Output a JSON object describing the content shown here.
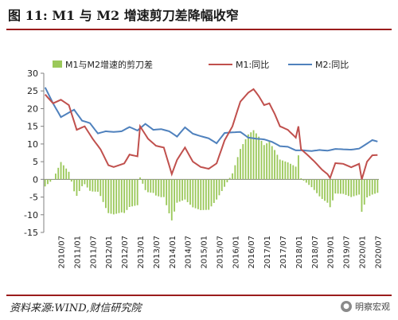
{
  "figure": {
    "title": "图 11:  M1 与 M2 增速剪刀差降幅收窄",
    "source": "资料来源:WIND,财信研究院",
    "watermark": "明察宏观"
  },
  "chart_data": {
    "type": "bar+line",
    "ylim": [
      -15,
      30
    ],
    "yticks": [
      -15,
      -10,
      -5,
      0,
      5,
      10,
      15,
      20,
      25,
      30
    ],
    "xtick_labels": [
      "2010/07",
      "2011/01",
      "2011/07",
      "2012/01",
      "2012/07",
      "2013/01",
      "2013/07",
      "2014/01",
      "2014/07",
      "2015/01",
      "2015/07",
      "2016/01",
      "2016/07",
      "2017/01",
      "2017/07",
      "2018/01",
      "2018/07",
      "2019/01",
      "2019/07",
      "2020/01",
      "2020/07"
    ],
    "x_start": "2010/01",
    "legend": {
      "position": "top",
      "entries": [
        "M1与M2增速的剪刀差",
        "M1:同比",
        "M2:同比"
      ]
    },
    "colors": {
      "bars": "#9bc85a",
      "m1": "#c0504d",
      "m2": "#4f81bd",
      "axis": "#808080"
    },
    "m1_anchors": [
      [
        "2010/01",
        24.0
      ],
      [
        "2010/04",
        21.5
      ],
      [
        "2010/07",
        22.5
      ],
      [
        "2010/10",
        21.0
      ],
      [
        "2011/01",
        14.0
      ],
      [
        "2011/04",
        15.0
      ],
      [
        "2011/07",
        11.5
      ],
      [
        "2011/10",
        8.5
      ],
      [
        "2012/01",
        4.0
      ],
      [
        "2012/03",
        3.5
      ],
      [
        "2012/05",
        4.0
      ],
      [
        "2012/07",
        4.5
      ],
      [
        "2012/09",
        7.0
      ],
      [
        "2012/12",
        6.5
      ],
      [
        "2013/01",
        15.0
      ],
      [
        "2013/04",
        11.5
      ],
      [
        "2013/07",
        9.5
      ],
      [
        "2013/10",
        9.0
      ],
      [
        "2014/01",
        1.5
      ],
      [
        "2014/03",
        5.5
      ],
      [
        "2014/06",
        9.0
      ],
      [
        "2014/09",
        5.0
      ],
      [
        "2014/12",
        3.5
      ],
      [
        "2015/03",
        3.0
      ],
      [
        "2015/06",
        4.5
      ],
      [
        "2015/09",
        11.0
      ],
      [
        "2015/12",
        15.0
      ],
      [
        "2016/03",
        22.0
      ],
      [
        "2016/06",
        24.5
      ],
      [
        "2016/08",
        25.5
      ],
      [
        "2016/10",
        23.5
      ],
      [
        "2016/12",
        21.0
      ],
      [
        "2017/02",
        21.5
      ],
      [
        "2017/04",
        18.5
      ],
      [
        "2017/06",
        15.0
      ],
      [
        "2017/09",
        14.0
      ],
      [
        "2017/12",
        11.8
      ],
      [
        "2018/01",
        15.0
      ],
      [
        "2018/02",
        8.5
      ],
      [
        "2018/04",
        7.2
      ],
      [
        "2018/07",
        5.1
      ],
      [
        "2018/10",
        2.7
      ],
      [
        "2018/12",
        1.5
      ],
      [
        "2019/01",
        0.4
      ],
      [
        "2019/03",
        4.6
      ],
      [
        "2019/06",
        4.4
      ],
      [
        "2019/09",
        3.4
      ],
      [
        "2019/12",
        4.4
      ],
      [
        "2020/01",
        0.0
      ],
      [
        "2020/03",
        5.0
      ],
      [
        "2020/05",
        6.8
      ],
      [
        "2020/07",
        6.9
      ]
    ],
    "m2_anchors": [
      [
        "2010/01",
        26.0
      ],
      [
        "2010/04",
        21.5
      ],
      [
        "2010/07",
        17.6
      ],
      [
        "2010/12",
        19.7
      ],
      [
        "2011/03",
        16.6
      ],
      [
        "2011/06",
        15.9
      ],
      [
        "2011/09",
        13.0
      ],
      [
        "2011/12",
        13.6
      ],
      [
        "2012/03",
        13.4
      ],
      [
        "2012/06",
        13.6
      ],
      [
        "2012/09",
        14.8
      ],
      [
        "2012/12",
        13.8
      ],
      [
        "2013/03",
        15.7
      ],
      [
        "2013/06",
        14.0
      ],
      [
        "2013/09",
        14.2
      ],
      [
        "2013/12",
        13.6
      ],
      [
        "2014/03",
        12.1
      ],
      [
        "2014/06",
        14.7
      ],
      [
        "2014/09",
        12.9
      ],
      [
        "2014/12",
        12.2
      ],
      [
        "2015/03",
        11.6
      ],
      [
        "2015/06",
        10.2
      ],
      [
        "2015/09",
        13.1
      ],
      [
        "2015/12",
        13.3
      ],
      [
        "2016/03",
        13.4
      ],
      [
        "2016/06",
        11.8
      ],
      [
        "2016/09",
        11.5
      ],
      [
        "2016/12",
        11.3
      ],
      [
        "2017/03",
        10.6
      ],
      [
        "2017/06",
        9.4
      ],
      [
        "2017/09",
        9.2
      ],
      [
        "2017/12",
        8.2
      ],
      [
        "2018/03",
        8.2
      ],
      [
        "2018/06",
        8.0
      ],
      [
        "2018/09",
        8.3
      ],
      [
        "2018/12",
        8.1
      ],
      [
        "2019/03",
        8.6
      ],
      [
        "2019/06",
        8.5
      ],
      [
        "2019/09",
        8.4
      ],
      [
        "2019/12",
        8.7
      ],
      [
        "2020/03",
        10.1
      ],
      [
        "2020/05",
        11.1
      ],
      [
        "2020/07",
        10.7
      ]
    ]
  }
}
